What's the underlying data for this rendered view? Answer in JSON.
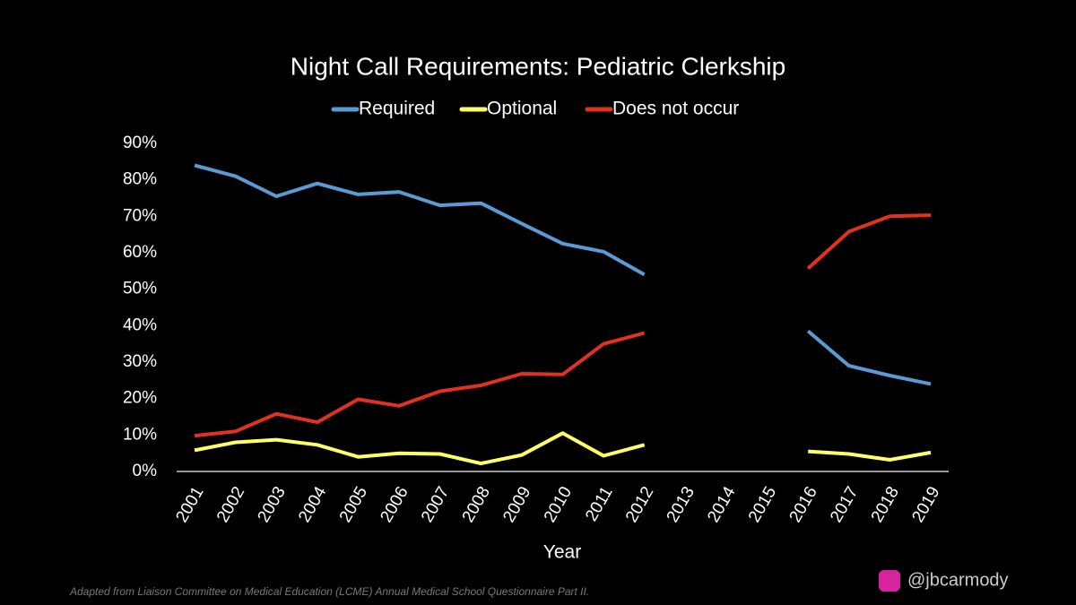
{
  "chart_data": {
    "type": "line",
    "title": "Night Call Requirements: Pediatric Clerkship",
    "x_label": "Year",
    "categories": [
      "2001",
      "2002",
      "2003",
      "2004",
      "2005",
      "2006",
      "2007",
      "2008",
      "2009",
      "2010",
      "2011",
      "2012",
      "2013",
      "2014",
      "2015",
      "2016",
      "2017",
      "2018",
      "2019"
    ],
    "series": [
      {
        "name": "Required",
        "color": "#5b9bd5",
        "values": [
          84,
          81,
          75.5,
          79,
          76,
          76.7,
          73,
          73.6,
          68,
          62.5,
          60.3,
          54,
          null,
          null,
          null,
          38.5,
          29,
          26.3,
          24
        ]
      },
      {
        "name": "Optional",
        "color": "#ffff66",
        "values": [
          5.8,
          8,
          8.7,
          7.3,
          4,
          5,
          4.8,
          2.2,
          4.5,
          10.5,
          4.3,
          7.3,
          null,
          null,
          null,
          5.5,
          4.8,
          3.2,
          5.2
        ]
      },
      {
        "name": "Does not occur",
        "color": "#e0321e",
        "values": [
          9.8,
          11,
          15.8,
          13.5,
          19.8,
          18,
          22,
          23.6,
          26.8,
          26.6,
          35,
          38,
          null,
          null,
          null,
          55.7,
          65.8,
          70,
          70.3
        ]
      }
    ],
    "ylim": [
      0,
      90
    ],
    "yticks": [
      {
        "value": 0,
        "label": "0%"
      },
      {
        "value": 10,
        "label": "10%"
      },
      {
        "value": 20,
        "label": "20%"
      },
      {
        "value": 30,
        "label": "30%"
      },
      {
        "value": 40,
        "label": "40%"
      },
      {
        "value": 50,
        "label": "50%"
      },
      {
        "value": 60,
        "label": "60%"
      },
      {
        "value": 70,
        "label": "70%"
      },
      {
        "value": 80,
        "label": "80%"
      },
      {
        "value": 90,
        "label": "90%"
      }
    ],
    "grid": false,
    "legend": "top",
    "source": "Adapted from Liaison Committee on Medical Education (LCME) Annual Medical School Questionnaire Part II.",
    "credit": "@jbcarmody"
  }
}
